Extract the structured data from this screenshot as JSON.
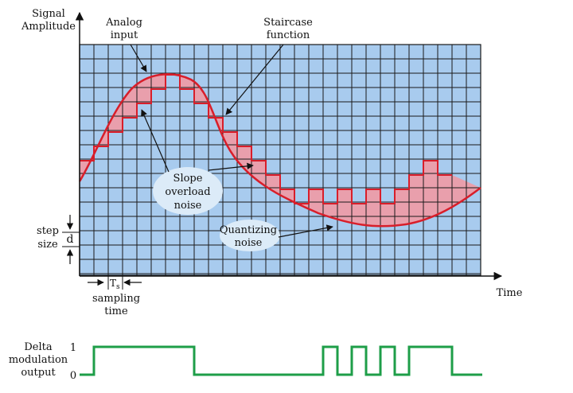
{
  "labels": {
    "y_axis_line1": "Signal",
    "y_axis_line2": "Amplitude",
    "x_axis": "Time",
    "analog_line1": "Analog",
    "analog_line2": "input",
    "staircase_line1": "Staircase",
    "staircase_line2": "function",
    "slope_line1": "Slope",
    "slope_line2": "overload",
    "slope_line3": "noise",
    "quant_line1": "Quantizing",
    "quant_line2": "noise",
    "step_line1": "step",
    "step_line2": "size",
    "step_symbol": "d",
    "ts_main": "T",
    "ts_sub": "s",
    "sampling_line1": "sampling",
    "sampling_line2": "time",
    "dm_line1": "Delta",
    "dm_line2": "modulation",
    "dm_line3": "output",
    "level_one": "1",
    "level_zero": "0"
  },
  "staircase_levels": [
    2,
    3,
    4,
    5,
    6,
    7,
    8,
    7,
    6,
    5,
    4,
    3,
    2,
    1,
    0,
    -1,
    0,
    -1,
    0,
    -1,
    0,
    -1,
    0,
    1,
    2,
    1
  ],
  "output_bits": [
    1,
    1,
    1,
    1,
    1,
    1,
    1,
    0,
    0,
    0,
    0,
    0,
    0,
    0,
    0,
    0,
    1,
    0,
    1,
    0,
    1,
    0,
    1,
    1,
    1,
    0
  ],
  "colors": {
    "grid_fill": "#a8cbee",
    "grid_line": "#1a1a1a",
    "curve": "#d81e2a",
    "noise_fill": "#f09aa4",
    "output": "#1e9e48",
    "cloud": "#dcebf8"
  }
}
